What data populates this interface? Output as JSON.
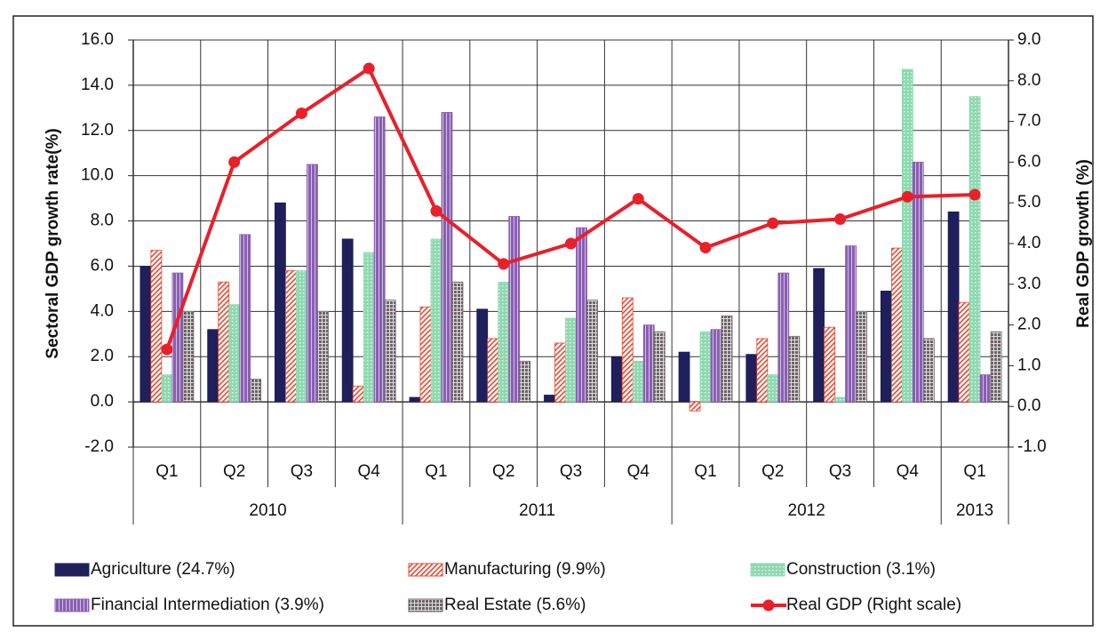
{
  "chart_data": {
    "type": "bar",
    "categories": [
      "Q1",
      "Q2",
      "Q3",
      "Q4",
      "Q1",
      "Q2",
      "Q3",
      "Q4",
      "Q1",
      "Q2",
      "Q3",
      "Q4",
      "Q1"
    ],
    "category_years": [
      "2010",
      "2010",
      "2010",
      "2010",
      "2011",
      "2011",
      "2011",
      "2011",
      "2012",
      "2012",
      "2012",
      "2012",
      "2013"
    ],
    "y_label": "Sectoral GDP growth rate(%)",
    "y2_label": "Real GDP growth (%)",
    "ylim": [
      -2,
      16
    ],
    "yticks": [
      {
        "value": -2,
        "label": "-2.0"
      },
      {
        "value": 0,
        "label": "0.0"
      },
      {
        "value": 2,
        "label": "2.0"
      },
      {
        "value": 4,
        "label": "4.0"
      },
      {
        "value": 6,
        "label": "6.0"
      },
      {
        "value": 8,
        "label": "8.0"
      },
      {
        "value": 10,
        "label": "10.0"
      },
      {
        "value": 12,
        "label": "12.0"
      },
      {
        "value": 14,
        "label": "14.0"
      },
      {
        "value": 16,
        "label": "16.0"
      }
    ],
    "y2lim": [
      -1,
      9
    ],
    "y2ticks": [
      {
        "value": -1,
        "label": "-1.0"
      },
      {
        "value": 0,
        "label": "0.0"
      },
      {
        "value": 1,
        "label": "1.0"
      },
      {
        "value": 2,
        "label": "2.0"
      },
      {
        "value": 3,
        "label": "3.0"
      },
      {
        "value": 4,
        "label": "4.0"
      },
      {
        "value": 5,
        "label": "5.0"
      },
      {
        "value": 6,
        "label": "6.0"
      },
      {
        "value": 7,
        "label": "7.0"
      },
      {
        "value": 8,
        "label": "8.0"
      },
      {
        "value": 9,
        "label": "9.0"
      }
    ],
    "grid": true,
    "series": [
      {
        "name": "Agriculture (24.7%)",
        "color": "#1f1f5c",
        "values": [
          6.0,
          3.2,
          8.8,
          7.2,
          0.2,
          4.1,
          0.3,
          2.0,
          2.2,
          2.1,
          5.9,
          4.9,
          8.4
        ]
      },
      {
        "name": "Manufacturing (9.9%)",
        "color": "#e8482f",
        "values": [
          6.7,
          5.3,
          5.8,
          0.7,
          4.2,
          2.8,
          2.6,
          4.6,
          -0.4,
          2.8,
          3.3,
          6.8,
          4.4
        ]
      },
      {
        "name": "Construction (3.1%)",
        "color": "#8fd9b0",
        "values": [
          1.2,
          4.3,
          5.8,
          6.6,
          7.2,
          5.3,
          3.7,
          1.8,
          3.1,
          1.2,
          0.2,
          14.7,
          13.5
        ]
      },
      {
        "name": "Financial Intermediation (3.9%)",
        "color": "#8a5fb3",
        "values": [
          5.7,
          7.4,
          10.5,
          12.6,
          12.8,
          8.2,
          7.7,
          3.4,
          3.2,
          5.7,
          6.9,
          10.6,
          1.2
        ]
      },
      {
        "name": "Real Estate (5.6%)",
        "color": "#6e6466",
        "values": [
          4.0,
          1.0,
          4.0,
          4.5,
          5.3,
          1.8,
          4.5,
          3.1,
          3.8,
          2.9,
          4.0,
          2.8,
          3.1
        ]
      },
      {
        "name": "Real GDP (Right scale)",
        "color": "#e8202a",
        "type": "line",
        "axis": "y2",
        "values": [
          1.4,
          6.0,
          7.2,
          8.3,
          4.8,
          3.5,
          4.0,
          5.1,
          3.9,
          4.5,
          4.6,
          5.15,
          5.2
        ]
      }
    ]
  }
}
